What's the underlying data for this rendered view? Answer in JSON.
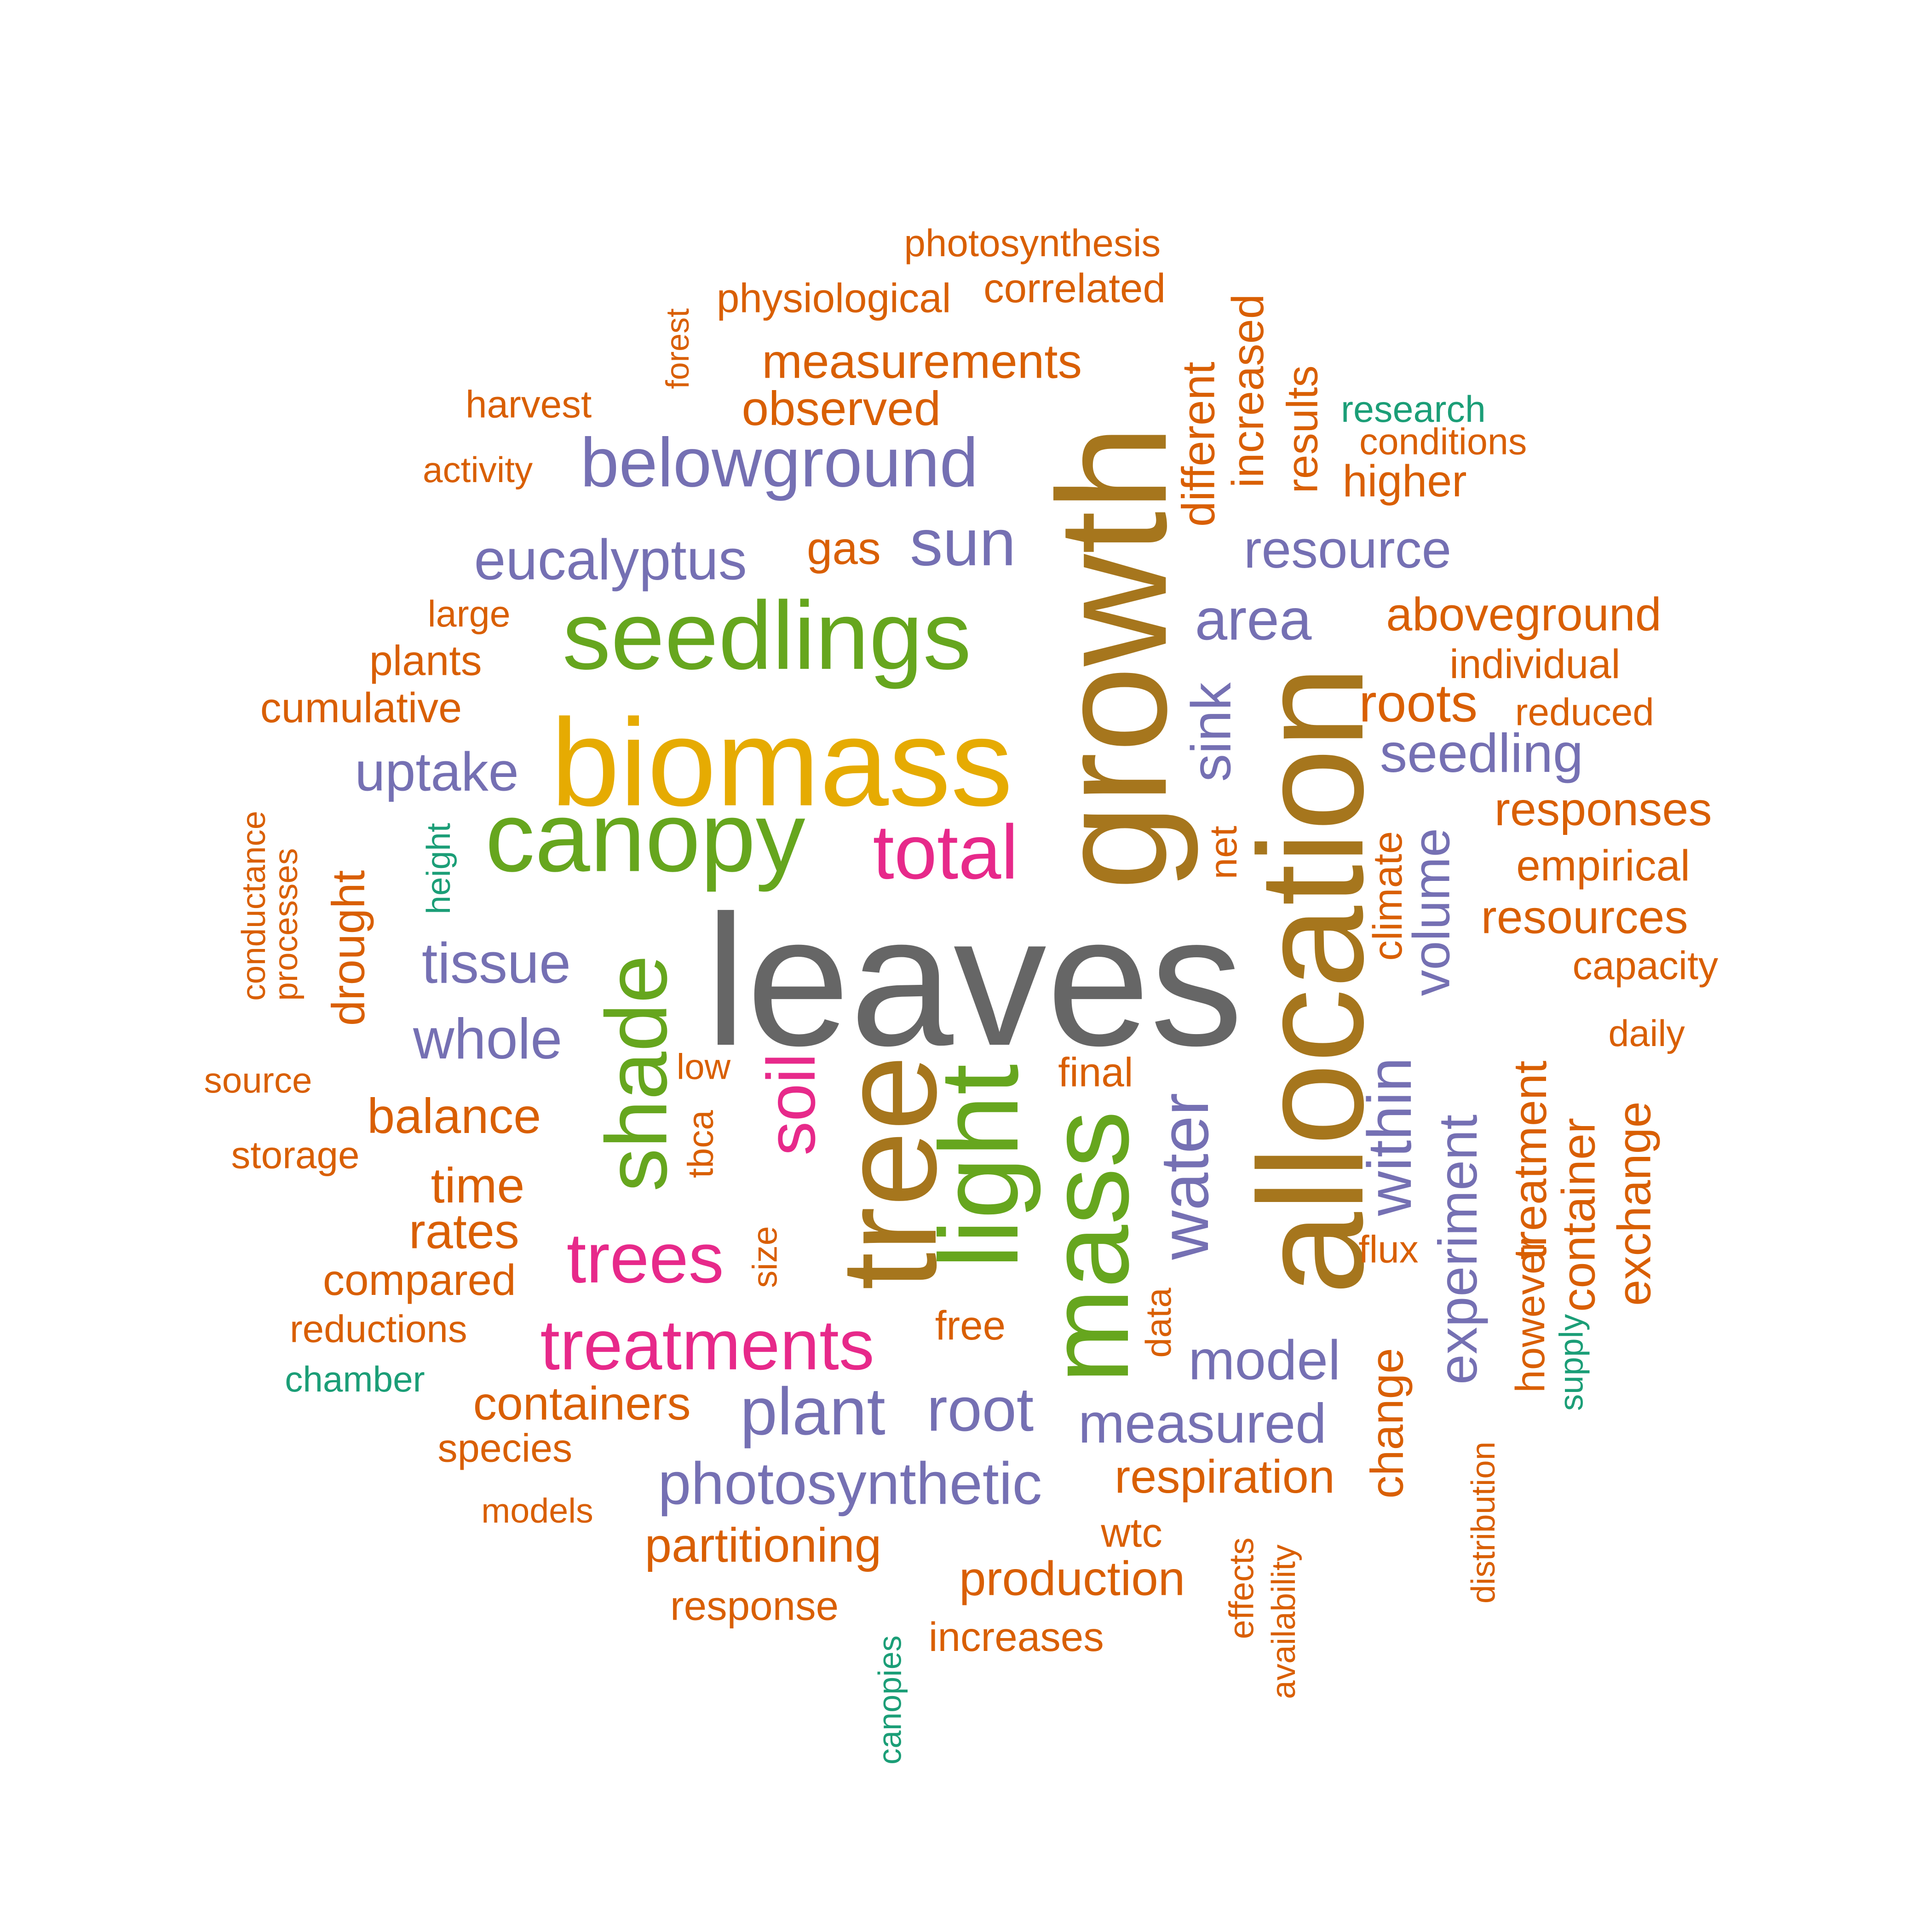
{
  "colors": {
    "dark_gray": "#666666",
    "brown": "#A6761D",
    "mustard": "#E6AB02",
    "green": "#66A61E",
    "magenta": "#E7298A",
    "purple": "#7570B3",
    "orange": "#D95F02",
    "teal": "#1B9E77"
  },
  "words": [
    {
      "text": "leaves",
      "color": "#666666"
    },
    {
      "text": "growth",
      "color": "#A6761D"
    },
    {
      "text": "allocation",
      "color": "#A6761D"
    },
    {
      "text": "tree",
      "color": "#A6761D"
    },
    {
      "text": "biomass",
      "color": "#E6AB02"
    },
    {
      "text": "seedlings",
      "color": "#66A61E"
    },
    {
      "text": "canopy",
      "color": "#66A61E"
    },
    {
      "text": "mass",
      "color": "#66A61E"
    },
    {
      "text": "light",
      "color": "#66A61E"
    },
    {
      "text": "shade",
      "color": "#66A61E"
    },
    {
      "text": "total",
      "color": "#E7298A"
    },
    {
      "text": "treatments",
      "color": "#E7298A"
    },
    {
      "text": "trees",
      "color": "#E7298A"
    },
    {
      "text": "soil",
      "color": "#E7298A"
    },
    {
      "text": "belowground",
      "color": "#7570B3"
    },
    {
      "text": "sun",
      "color": "#7570B3"
    },
    {
      "text": "eucalyptus",
      "color": "#7570B3"
    },
    {
      "text": "resource",
      "color": "#7570B3"
    },
    {
      "text": "area",
      "color": "#7570B3"
    },
    {
      "text": "sink",
      "color": "#7570B3"
    },
    {
      "text": "seedling",
      "color": "#7570B3"
    },
    {
      "text": "uptake",
      "color": "#7570B3"
    },
    {
      "text": "tissue",
      "color": "#7570B3"
    },
    {
      "text": "whole",
      "color": "#7570B3"
    },
    {
      "text": "water",
      "color": "#7570B3"
    },
    {
      "text": "within",
      "color": "#7570B3"
    },
    {
      "text": "volume",
      "color": "#7570B3"
    },
    {
      "text": "experiment",
      "color": "#7570B3"
    },
    {
      "text": "model",
      "color": "#7570B3"
    },
    {
      "text": "measured",
      "color": "#7570B3"
    },
    {
      "text": "plant",
      "color": "#7570B3"
    },
    {
      "text": "root",
      "color": "#7570B3"
    },
    {
      "text": "photosynthetic",
      "color": "#7570B3"
    },
    {
      "text": "photosynthesis",
      "color": "#D95F02"
    },
    {
      "text": "physiological",
      "color": "#D95F02"
    },
    {
      "text": "correlated",
      "color": "#D95F02"
    },
    {
      "text": "forest",
      "color": "#D95F02"
    },
    {
      "text": "measurements",
      "color": "#D95F02"
    },
    {
      "text": "observed",
      "color": "#D95F02"
    },
    {
      "text": "harvest",
      "color": "#D95F02"
    },
    {
      "text": "activity",
      "color": "#D95F02"
    },
    {
      "text": "different",
      "color": "#D95F02"
    },
    {
      "text": "increased",
      "color": "#D95F02"
    },
    {
      "text": "results",
      "color": "#D95F02"
    },
    {
      "text": "research",
      "color": "#1B9E77"
    },
    {
      "text": "conditions",
      "color": "#D95F02"
    },
    {
      "text": "higher",
      "color": "#D95F02"
    },
    {
      "text": "gas",
      "color": "#D95F02"
    },
    {
      "text": "aboveground",
      "color": "#D95F02"
    },
    {
      "text": "individual",
      "color": "#D95F02"
    },
    {
      "text": "large",
      "color": "#D95F02"
    },
    {
      "text": "plants",
      "color": "#D95F02"
    },
    {
      "text": "cumulative",
      "color": "#D95F02"
    },
    {
      "text": "roots",
      "color": "#D95F02"
    },
    {
      "text": "reduced",
      "color": "#D95F02"
    },
    {
      "text": "responses",
      "color": "#D95F02"
    },
    {
      "text": "empirical",
      "color": "#D95F02"
    },
    {
      "text": "resources",
      "color": "#D95F02"
    },
    {
      "text": "capacity",
      "color": "#D95F02"
    },
    {
      "text": "daily",
      "color": "#D95F02"
    },
    {
      "text": "net",
      "color": "#D95F02"
    },
    {
      "text": "climate",
      "color": "#D95F02"
    },
    {
      "text": "conductance",
      "color": "#D95F02"
    },
    {
      "text": "processes",
      "color": "#D95F02"
    },
    {
      "text": "height",
      "color": "#1B9E77"
    },
    {
      "text": "drought",
      "color": "#D95F02"
    },
    {
      "text": "source",
      "color": "#D95F02"
    },
    {
      "text": "low",
      "color": "#D95F02"
    },
    {
      "text": "final",
      "color": "#D95F02"
    },
    {
      "text": "balance",
      "color": "#D95F02"
    },
    {
      "text": "storage",
      "color": "#D95F02"
    },
    {
      "text": "tbca",
      "color": "#D95F02"
    },
    {
      "text": "time",
      "color": "#D95F02"
    },
    {
      "text": "rates",
      "color": "#D95F02"
    },
    {
      "text": "size",
      "color": "#D95F02"
    },
    {
      "text": "flux",
      "color": "#D95F02"
    },
    {
      "text": "compared",
      "color": "#D95F02"
    },
    {
      "text": "treatment",
      "color": "#D95F02"
    },
    {
      "text": "however",
      "color": "#D95F02"
    },
    {
      "text": "container",
      "color": "#D95F02"
    },
    {
      "text": "exchange",
      "color": "#D95F02"
    },
    {
      "text": "reductions",
      "color": "#D95F02"
    },
    {
      "text": "free",
      "color": "#D95F02"
    },
    {
      "text": "data",
      "color": "#D95F02"
    },
    {
      "text": "chamber",
      "color": "#1B9E77"
    },
    {
      "text": "supply",
      "color": "#1B9E77"
    },
    {
      "text": "containers",
      "color": "#D95F02"
    },
    {
      "text": "change",
      "color": "#D95F02"
    },
    {
      "text": "species",
      "color": "#D95F02"
    },
    {
      "text": "distribution",
      "color": "#D95F02"
    },
    {
      "text": "respiration",
      "color": "#D95F02"
    },
    {
      "text": "models",
      "color": "#D95F02"
    },
    {
      "text": "wtc",
      "color": "#D95F02"
    },
    {
      "text": "partitioning",
      "color": "#D95F02"
    },
    {
      "text": "effects",
      "color": "#D95F02"
    },
    {
      "text": "availability",
      "color": "#D95F02"
    },
    {
      "text": "production",
      "color": "#D95F02"
    },
    {
      "text": "response",
      "color": "#D95F02"
    },
    {
      "text": "increases",
      "color": "#D95F02"
    },
    {
      "text": "canopies",
      "color": "#1B9E77"
    }
  ]
}
